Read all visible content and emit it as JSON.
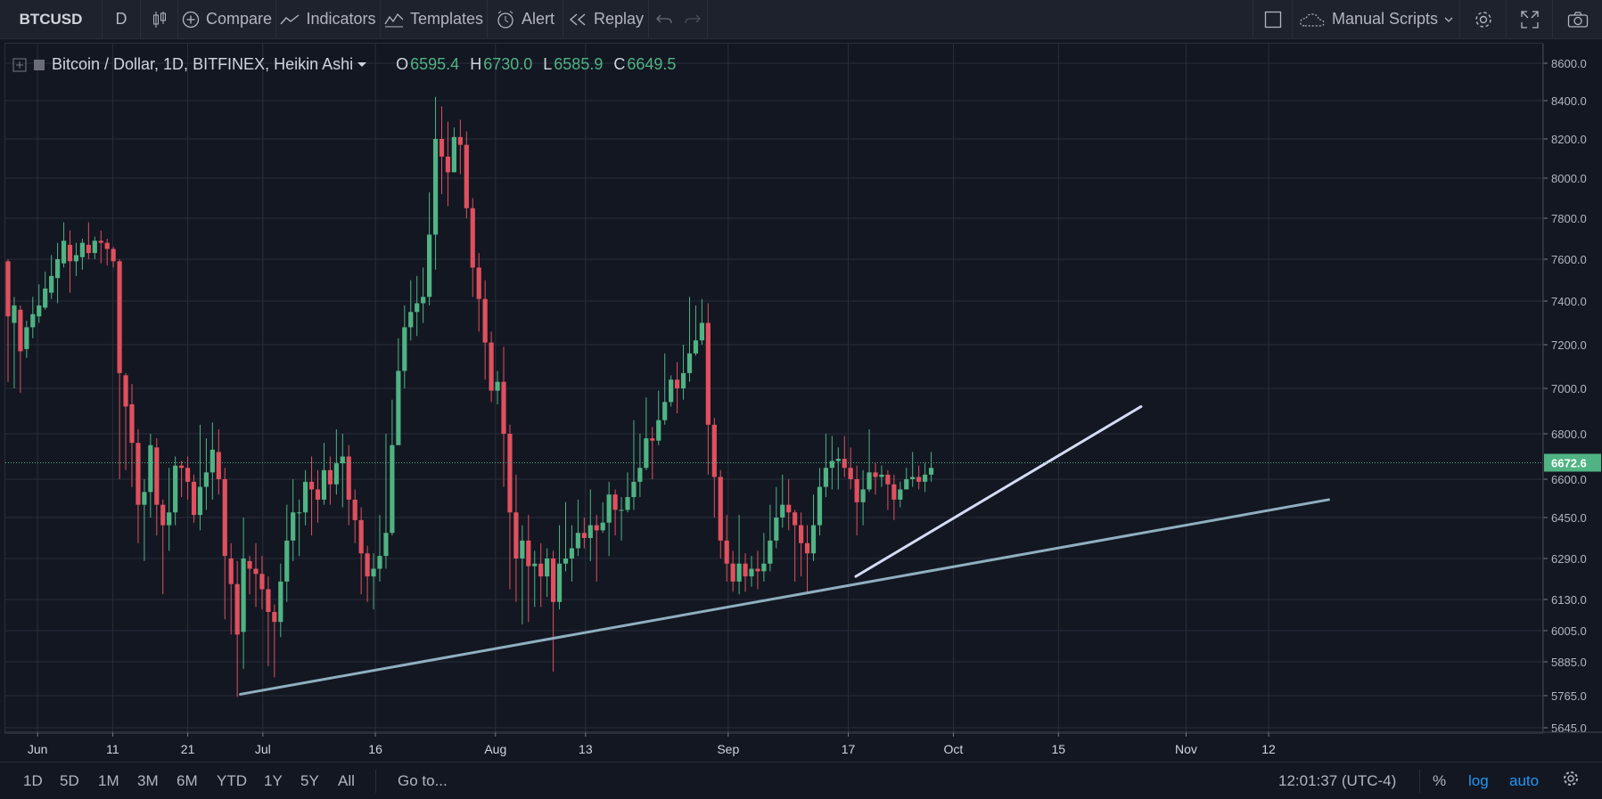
{
  "toolbar": {
    "symbol": "BTCUSD",
    "interval": "D",
    "compare": "Compare",
    "indicators": "Indicators",
    "templates": "Templates",
    "alert": "Alert",
    "replay": "Replay",
    "manual_scripts": "Manual Scripts"
  },
  "legend": {
    "title": "Bitcoin / Dollar, 1D, BITFINEX, Heikin Ashi",
    "o_label": "O",
    "o": "6595.4",
    "h_label": "H",
    "h": "6730.0",
    "l_label": "L",
    "l": "6585.9",
    "c_label": "C",
    "c": "6649.5"
  },
  "chart_data": {
    "type": "candlestick",
    "subtype": "Heikin Ashi",
    "price_axis": [
      "8600.0",
      "8400.0",
      "8200.0",
      "8000.0",
      "7800.0",
      "7600.0",
      "7400.0",
      "7200.0",
      "7000.0",
      "6800.0",
      "6600.0",
      "6450.0",
      "6290.0",
      "6130.0",
      "6005.0",
      "5885.0",
      "5765.0",
      "5645.0"
    ],
    "last_price": "6672.6",
    "time_axis": [
      "Jun",
      "11",
      "21",
      "Jul",
      "16",
      "Aug",
      "13",
      "Sep",
      "17",
      "Oct",
      "15",
      "Nov",
      "12"
    ],
    "scale": "log",
    "grid": true,
    "trendlines": [
      {
        "from_date": "2018-06-28",
        "from_price": 5770,
        "to_date": "2018-11-20",
        "to_price": 6520,
        "color": "#8fb0c0"
      },
      {
        "from_date": "2018-09-18",
        "from_price": 6220,
        "to_date": "2018-10-26",
        "to_price": 6920,
        "color": "#d5dcf5"
      }
    ],
    "up_color": "#4fb383",
    "down_color": "#e0505e",
    "candles": [
      [
        7590,
        7330,
        7600,
        7030
      ],
      [
        7300,
        7380,
        7420,
        7000
      ],
      [
        7360,
        7170,
        7380,
        6980
      ],
      [
        7180,
        7280,
        7310,
        7140
      ],
      [
        7280,
        7340,
        7420,
        7230
      ],
      [
        7330,
        7380,
        7480,
        7300
      ],
      [
        7370,
        7460,
        7540,
        7360
      ],
      [
        7440,
        7520,
        7620,
        7410
      ],
      [
        7510,
        7600,
        7680,
        7390
      ],
      [
        7580,
        7690,
        7780,
        7560
      ],
      [
        7670,
        7590,
        7740,
        7440
      ],
      [
        7590,
        7620,
        7680,
        7520
      ],
      [
        7610,
        7680,
        7700,
        7550
      ],
      [
        7670,
        7630,
        7780,
        7600
      ],
      [
        7630,
        7690,
        7710,
        7600
      ],
      [
        7690,
        7680,
        7740,
        7580
      ],
      [
        7680,
        7650,
        7700,
        7570
      ],
      [
        7650,
        7590,
        7660,
        7560
      ],
      [
        7590,
        7070,
        7600,
        6600
      ],
      [
        7060,
        6920,
        7070,
        6640
      ],
      [
        6930,
        6760,
        7020,
        6570
      ],
      [
        6760,
        6500,
        6820,
        6350
      ],
      [
        6500,
        6550,
        6600,
        6280
      ],
      [
        6550,
        6750,
        6800,
        6450
      ],
      [
        6740,
        6500,
        6780,
        6380
      ],
      [
        6500,
        6420,
        6520,
        6150
      ],
      [
        6420,
        6470,
        6650,
        6320
      ],
      [
        6470,
        6660,
        6700,
        6420
      ],
      [
        6660,
        6650,
        6680,
        6530
      ],
      [
        6650,
        6590,
        6700,
        6520
      ],
      [
        6590,
        6460,
        6620,
        6430
      ],
      [
        6460,
        6570,
        6840,
        6400
      ],
      [
        6570,
        6630,
        6780,
        6480
      ],
      [
        6630,
        6730,
        6850,
        6520
      ],
      [
        6720,
        6600,
        6820,
        6540
      ],
      [
        6600,
        6300,
        6650,
        6050
      ],
      [
        6290,
        6190,
        6350,
        5990
      ],
      [
        6190,
        5990,
        6280,
        5760
      ],
      [
        6000,
        6290,
        6450,
        5860
      ],
      [
        6280,
        6250,
        6300,
        6150
      ],
      [
        6250,
        6230,
        6350,
        6100
      ],
      [
        6230,
        6170,
        6300,
        6090
      ],
      [
        6170,
        6080,
        6220,
        5870
      ],
      [
        6080,
        6040,
        6110,
        5830
      ],
      [
        6040,
        6200,
        6270,
        5980
      ],
      [
        6200,
        6360,
        6500,
        6120
      ],
      [
        6360,
        6470,
        6600,
        6280
      ],
      [
        6470,
        6470,
        6520,
        6300
      ],
      [
        6470,
        6590,
        6640,
        6420
      ],
      [
        6590,
        6560,
        6700,
        6380
      ],
      [
        6560,
        6520,
        6640,
        6430
      ],
      [
        6520,
        6640,
        6760,
        6500
      ],
      [
        6640,
        6580,
        6700,
        6500
      ],
      [
        6580,
        6670,
        6820,
        6540
      ],
      [
        6670,
        6700,
        6800,
        6490
      ],
      [
        6700,
        6520,
        6750,
        6420
      ],
      [
        6520,
        6440,
        6560,
        6350
      ],
      [
        6440,
        6310,
        6490,
        6150
      ],
      [
        6310,
        6220,
        6340,
        6120
      ],
      [
        6220,
        6250,
        6310,
        6090
      ],
      [
        6250,
        6300,
        6460,
        6200
      ],
      [
        6300,
        6390,
        6800,
        6250
      ],
      [
        6390,
        6750,
        6950,
        6380
      ],
      [
        6750,
        7080,
        7230,
        6800
      ],
      [
        7080,
        7280,
        7380,
        7000
      ],
      [
        7280,
        7350,
        7500,
        7220
      ],
      [
        7350,
        7390,
        7520,
        7240
      ],
      [
        7390,
        7420,
        7560,
        7300
      ],
      [
        7420,
        7720,
        7930,
        7380
      ],
      [
        7720,
        8200,
        8420,
        7550
      ],
      [
        8200,
        8110,
        8370,
        7920
      ],
      [
        8110,
        8030,
        8290,
        7860
      ],
      [
        8030,
        8210,
        8260,
        8040
      ],
      [
        8210,
        8170,
        8300,
        8020
      ],
      [
        8170,
        7850,
        8240,
        7800
      ],
      [
        7850,
        7560,
        7900,
        7420
      ],
      [
        7560,
        7410,
        7630,
        7260
      ],
      [
        7410,
        7210,
        7500,
        7040
      ],
      [
        7210,
        6990,
        7260,
        6940
      ],
      [
        6990,
        7030,
        7080,
        6930
      ],
      [
        7030,
        6800,
        7190,
        6570
      ],
      [
        6800,
        6470,
        6840,
        6170
      ],
      [
        6470,
        6290,
        6620,
        6120
      ],
      [
        6290,
        6360,
        6420,
        6030
      ],
      [
        6360,
        6260,
        6460,
        6040
      ],
      [
        6260,
        6270,
        6320,
        6100
      ],
      [
        6270,
        6220,
        6350,
        6100
      ],
      [
        6220,
        6290,
        6330,
        6140
      ],
      [
        6290,
        6120,
        6320,
        5850
      ],
      [
        6120,
        6270,
        6420,
        6090
      ],
      [
        6270,
        6290,
        6510,
        6240
      ],
      [
        6290,
        6330,
        6420,
        6200
      ],
      [
        6330,
        6390,
        6520,
        6300
      ],
      [
        6390,
        6370,
        6450,
        6330
      ],
      [
        6370,
        6420,
        6560,
        6280
      ],
      [
        6420,
        6400,
        6460,
        6200
      ],
      [
        6400,
        6430,
        6510,
        6390
      ],
      [
        6430,
        6540,
        6590,
        6300
      ],
      [
        6540,
        6480,
        6560,
        6380
      ],
      [
        6480,
        6480,
        6530,
        6360
      ],
      [
        6480,
        6530,
        6630,
        6470
      ],
      [
        6530,
        6590,
        6860,
        6480
      ],
      [
        6590,
        6650,
        6800,
        6530
      ],
      [
        6650,
        6780,
        6960,
        6640
      ],
      [
        6780,
        6770,
        6830,
        6600
      ],
      [
        6770,
        6860,
        6990,
        6750
      ],
      [
        6860,
        6940,
        7160,
        6840
      ],
      [
        6940,
        7040,
        7060,
        6920
      ],
      [
        7040,
        7000,
        7120,
        6890
      ],
      [
        7000,
        7070,
        7200,
        6950
      ],
      [
        7070,
        7160,
        7420,
        7030
      ],
      [
        7160,
        7220,
        7380,
        7150
      ],
      [
        7220,
        7300,
        7410,
        7200
      ],
      [
        7300,
        6840,
        7390,
        6620
      ],
      [
        6840,
        6610,
        6870,
        6450
      ],
      [
        6610,
        6360,
        6640,
        6290
      ],
      [
        6360,
        6270,
        6460,
        6200
      ],
      [
        6270,
        6200,
        6320,
        6160
      ],
      [
        6200,
        6270,
        6460,
        6150
      ],
      [
        6270,
        6220,
        6310,
        6160
      ],
      [
        6220,
        6250,
        6300,
        6180
      ],
      [
        6250,
        6240,
        6320,
        6170
      ],
      [
        6240,
        6270,
        6390,
        6200
      ],
      [
        6270,
        6360,
        6500,
        6240
      ],
      [
        6360,
        6450,
        6570,
        6330
      ],
      [
        6450,
        6500,
        6620,
        6410
      ],
      [
        6500,
        6470,
        6600,
        6400
      ],
      [
        6470,
        6420,
        6480,
        6200
      ],
      [
        6420,
        6350,
        6470,
        6220
      ],
      [
        6350,
        6310,
        6420,
        6150
      ],
      [
        6310,
        6420,
        6540,
        6280
      ],
      [
        6420,
        6570,
        6650,
        6380
      ],
      [
        6570,
        6650,
        6800,
        6530
      ],
      [
        6650,
        6680,
        6790,
        6560
      ],
      [
        6680,
        6690,
        6740,
        6560
      ],
      [
        6690,
        6650,
        6790,
        6610
      ],
      [
        6650,
        6600,
        6740,
        6560
      ],
      [
        6600,
        6510,
        6660,
        6380
      ],
      [
        6510,
        6560,
        6640,
        6420
      ],
      [
        6560,
        6630,
        6820,
        6550
      ],
      [
        6630,
        6610,
        6670,
        6540
      ],
      [
        6610,
        6620,
        6660,
        6570
      ],
      [
        6620,
        6580,
        6640,
        6480
      ],
      [
        6580,
        6520,
        6620,
        6440
      ],
      [
        6520,
        6560,
        6590,
        6490
      ],
      [
        6560,
        6600,
        6650,
        6560
      ],
      [
        6600,
        6610,
        6720,
        6570
      ],
      [
        6610,
        6590,
        6660,
        6560
      ],
      [
        6590,
        6620,
        6670,
        6550
      ],
      [
        6620,
        6650,
        6720,
        6590
      ]
    ]
  },
  "bottombar": {
    "ranges": [
      "1D",
      "5D",
      "1M",
      "3M",
      "6M",
      "YTD",
      "1Y",
      "5Y",
      "All"
    ],
    "goto": "Go to...",
    "clock": "12:01:37 (UTC-4)",
    "percent": "%",
    "log": "log",
    "auto": "auto"
  }
}
